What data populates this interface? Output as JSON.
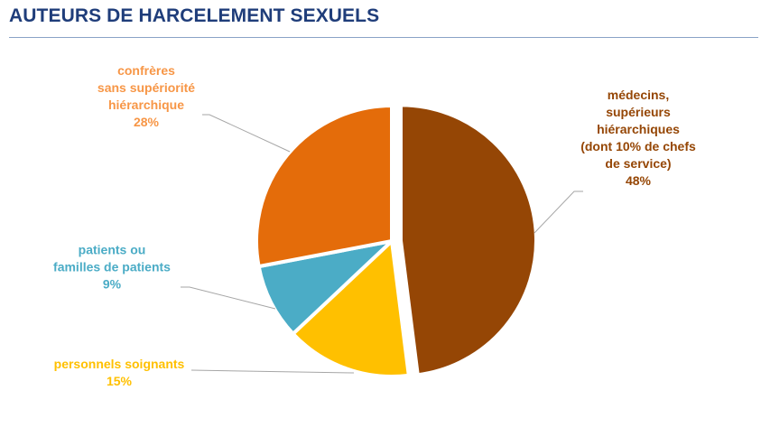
{
  "page": {
    "title": "AUTEURS DE HARCELEMENT SEXUELS"
  },
  "colors": {
    "title": "#1f3d7a",
    "rule": "#8aa3c7",
    "leader": "#a6a6a6"
  },
  "chart_data": {
    "type": "pie",
    "title": "AUTEURS DE HARCELEMENT SEXUELS",
    "slices": [
      {
        "label_lines": [
          "médecins,",
          "supérieurs",
          "hiérarchiques",
          "(dont 10% de chefs",
          "de service)"
        ],
        "value": 48,
        "value_label": "48%",
        "color": "#954605",
        "label_color": "#954605",
        "exploded": true
      },
      {
        "label_lines": [
          "personnels soignants"
        ],
        "value": 15,
        "value_label": "15%",
        "color": "#ffc000",
        "label_color": "#ffc000",
        "exploded": false
      },
      {
        "label_lines": [
          "patients ou",
          "familles de patients"
        ],
        "value": 9,
        "value_label": "9%",
        "color": "#4bacc6",
        "label_color": "#4bacc6",
        "exploded": false
      },
      {
        "label_lines": [
          "confrères",
          "sans supériorité",
          "hiérarchique"
        ],
        "value": 28,
        "value_label": "28%",
        "color": "#e46c0a",
        "label_color": "#f79646",
        "exploded": false
      }
    ],
    "legend": "none (data labels with leader lines)"
  }
}
